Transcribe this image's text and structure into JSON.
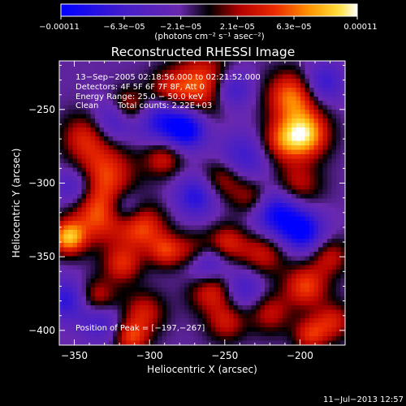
{
  "chart_data": {
    "type": "heatmap",
    "title": "Reconstructed RHESSI Image",
    "xlabel": "Heliocentric X (arcsec)",
    "ylabel": "Heliocentric Y (arcsec)",
    "xlim": [
      -360,
      -170
    ],
    "ylim": [
      -410,
      -217
    ],
    "x_ticks": [
      {
        "value": -350,
        "label": "−350"
      },
      {
        "value": -300,
        "label": "−300"
      },
      {
        "value": -250,
        "label": "−250"
      },
      {
        "value": -200,
        "label": "−200"
      }
    ],
    "y_ticks": [
      {
        "value": -250,
        "label": "−250"
      },
      {
        "value": -300,
        "label": "−300"
      },
      {
        "value": -350,
        "label": "−350"
      },
      {
        "value": -400,
        "label": "−400"
      }
    ],
    "colorbar": {
      "min": -0.00011,
      "max": 0.00011,
      "unit": "(photons cm⁻² s⁻¹ asec⁻²)",
      "tick_labels": [
        {
          "value": -0.00011,
          "label": "−0.00011"
        },
        {
          "value": -6.3e-05,
          "label": "−6.3e−05"
        },
        {
          "value": -2.1e-05,
          "label": "−2.1e−05"
        },
        {
          "value": 2.1e-05,
          "label": "2.1e−05"
        },
        {
          "value": 6.3e-05,
          "label": "6.3e−05"
        },
        {
          "value": 0.00011,
          "label": "0.00011"
        }
      ]
    },
    "annotations": {
      "time_range": "13−Sep−2005 02:18:56.000 to 02:21:52.000",
      "detectors": "Detectors: 4F 5F 6F 7F 8F, Att 0",
      "energy_range": "Energy Range: 25.0 − 50.0 keV",
      "method": "Clean",
      "total_counts": "Total counts: 2.22E+03",
      "peak_position": "Position of Peak = [−197,−267]"
    },
    "peak": {
      "x": -197,
      "y": -267
    },
    "peaks": [
      {
        "x": -197,
        "y": -267,
        "v": 1.0,
        "s": 11
      },
      {
        "x": -205,
        "y": -241,
        "v": 0.8,
        "s": 12
      },
      {
        "x": -202,
        "y": -302,
        "v": 0.5,
        "s": 11
      },
      {
        "x": -263,
        "y": -233,
        "v": 0.75,
        "s": 14
      },
      {
        "x": -287,
        "y": -238,
        "v": 0.55,
        "s": 10
      },
      {
        "x": -343,
        "y": -268,
        "v": 0.5,
        "s": 11
      },
      {
        "x": -330,
        "y": -292,
        "v": 0.6,
        "s": 14
      },
      {
        "x": -313,
        "y": -248,
        "v": 0.55,
        "s": 9
      },
      {
        "x": -291,
        "y": -283,
        "v": 0.5,
        "s": 9
      },
      {
        "x": -333,
        "y": -320,
        "v": 0.75,
        "s": 14
      },
      {
        "x": -305,
        "y": -330,
        "v": 0.65,
        "s": 11
      },
      {
        "x": -354,
        "y": -337,
        "v": 0.9,
        "s": 8
      },
      {
        "x": -318,
        "y": -355,
        "v": 0.55,
        "s": 9
      },
      {
        "x": -289,
        "y": -346,
        "v": 0.55,
        "s": 8
      },
      {
        "x": -270,
        "y": -347,
        "v": 0.5,
        "s": 9
      },
      {
        "x": -251,
        "y": -297,
        "v": 0.5,
        "s": 10
      },
      {
        "x": -249,
        "y": -341,
        "v": 0.55,
        "s": 9
      },
      {
        "x": -258,
        "y": -372,
        "v": 0.65,
        "s": 11
      },
      {
        "x": -249,
        "y": -395,
        "v": 0.45,
        "s": 9
      },
      {
        "x": -304,
        "y": -388,
        "v": 0.5,
        "s": 10
      },
      {
        "x": -335,
        "y": -378,
        "v": 0.55,
        "s": 9
      },
      {
        "x": -312,
        "y": -405,
        "v": 0.6,
        "s": 8
      },
      {
        "x": -225,
        "y": -348,
        "v": 0.5,
        "s": 11
      },
      {
        "x": -232,
        "y": -310,
        "v": 0.45,
        "s": 9
      },
      {
        "x": -220,
        "y": -388,
        "v": 0.45,
        "s": 10
      },
      {
        "x": -196,
        "y": -370,
        "v": 0.65,
        "s": 10
      },
      {
        "x": -193,
        "y": -403,
        "v": 0.55,
        "s": 8
      },
      {
        "x": -178,
        "y": -394,
        "v": 0.5,
        "s": 9
      },
      {
        "x": -180,
        "y": -350,
        "v": 0.45,
        "s": 9
      },
      {
        "x": -213,
        "y": -272,
        "v": 0.5,
        "s": 10
      }
    ],
    "troughs": [
      {
        "x": -324,
        "y": -258,
        "v": -0.5,
        "s": 10
      },
      {
        "x": -291,
        "y": -256,
        "v": -0.7,
        "s": 12
      },
      {
        "x": -275,
        "y": -264,
        "v": -0.75,
        "s": 9
      },
      {
        "x": -246,
        "y": -236,
        "v": -0.65,
        "s": 10
      },
      {
        "x": -269,
        "y": -309,
        "v": -0.6,
        "s": 10
      },
      {
        "x": -349,
        "y": -303,
        "v": -0.55,
        "s": 10
      },
      {
        "x": -317,
        "y": -317,
        "v": -0.55,
        "s": 9
      },
      {
        "x": -215,
        "y": -320,
        "v": -0.8,
        "s": 12
      },
      {
        "x": -198,
        "y": -333,
        "v": -0.75,
        "s": 10
      },
      {
        "x": -262,
        "y": -355,
        "v": -0.7,
        "s": 10
      },
      {
        "x": -238,
        "y": -283,
        "v": -0.5,
        "s": 12
      },
      {
        "x": -355,
        "y": -379,
        "v": -0.55,
        "s": 10
      },
      {
        "x": -185,
        "y": -232,
        "v": -0.55,
        "s": 10
      },
      {
        "x": -238,
        "y": -371,
        "v": -0.5,
        "s": 10
      },
      {
        "x": -333,
        "y": -393,
        "v": -0.45,
        "s": 10
      }
    ]
  },
  "footer": {
    "timestamp": "11−Jul−2013 12:57"
  }
}
